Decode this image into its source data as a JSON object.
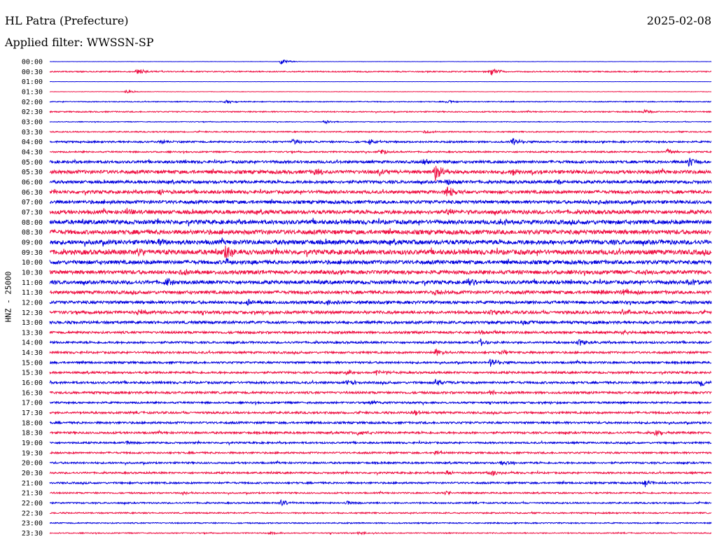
{
  "header": {
    "station": "HL Patra (Prefecture)",
    "date": "2025-02-08",
    "filter_prefix": "Applied filter:",
    "filter_name": "WWSSN-SP",
    "channel": "HNZ - 25000"
  },
  "colors": {
    "trace_even": "#0000dd",
    "trace_odd": "#ee1144",
    "text": "#000000",
    "background": "#ffffff"
  },
  "chart_data": {
    "type": "line",
    "ylabel": "HNZ - 25000",
    "row_labels": [
      "00:00",
      "00:30",
      "01:00",
      "01:30",
      "02:00",
      "02:30",
      "03:00",
      "03:30",
      "04:00",
      "04:30",
      "05:00",
      "05:30",
      "06:00",
      "06:30",
      "07:00",
      "07:30",
      "08:00",
      "08:30",
      "09:00",
      "09:30",
      "10:00",
      "10:30",
      "11:00",
      "11:30",
      "12:00",
      "12:30",
      "13:00",
      "13:30",
      "14:00",
      "14:30",
      "15:00",
      "15:30",
      "16:00",
      "16:30",
      "17:00",
      "17:30",
      "18:00",
      "18:30",
      "19:00",
      "19:30",
      "20:00",
      "20:30",
      "21:00",
      "21:30",
      "22:00",
      "22:30",
      "23:00",
      "23:30"
    ],
    "x_range_minutes": [
      0,
      30
    ],
    "noise_level": [
      0.2,
      0.8,
      0.15,
      0.3,
      0.6,
      0.8,
      0.5,
      0.8,
      1.2,
      1.0,
      1.8,
      2.4,
      2.0,
      2.2,
      2.2,
      2.6,
      2.8,
      3.0,
      3.0,
      3.2,
      2.6,
      2.6,
      2.4,
      2.2,
      2.0,
      2.0,
      1.8,
      1.6,
      1.4,
      1.4,
      1.4,
      1.4,
      1.5,
      1.5,
      1.3,
      1.4,
      1.4,
      1.4,
      1.2,
      1.2,
      1.2,
      1.2,
      1.2,
      1.0,
      1.0,
      0.9,
      0.8,
      0.7
    ],
    "events": [
      {
        "row": 0,
        "t": 10.5,
        "amp": 4
      },
      {
        "row": 1,
        "t": 4.0,
        "amp": 5
      },
      {
        "row": 1,
        "t": 20.0,
        "amp": 6
      },
      {
        "row": 3,
        "t": 3.5,
        "amp": 3
      },
      {
        "row": 4,
        "t": 8.0,
        "amp": 3
      },
      {
        "row": 4,
        "t": 18.0,
        "amp": 3
      },
      {
        "row": 5,
        "t": 27.0,
        "amp": 3
      },
      {
        "row": 6,
        "t": 12.5,
        "amp": 2.5
      },
      {
        "row": 7,
        "t": 17.0,
        "amp": 3
      },
      {
        "row": 8,
        "t": 5.0,
        "amp": 3
      },
      {
        "row": 8,
        "t": 11.0,
        "amp": 4
      },
      {
        "row": 8,
        "t": 14.5,
        "amp": 5
      },
      {
        "row": 8,
        "t": 21.0,
        "amp": 6
      },
      {
        "row": 9,
        "t": 15.0,
        "amp": 4
      },
      {
        "row": 9,
        "t": 28.0,
        "amp": 4
      },
      {
        "row": 10,
        "t": 17.0,
        "amp": 5
      },
      {
        "row": 10,
        "t": 29.0,
        "amp": 7
      },
      {
        "row": 11,
        "t": 17.5,
        "amp": 12
      },
      {
        "row": 11,
        "t": 15.0,
        "amp": 6
      },
      {
        "row": 11,
        "t": 12.0,
        "amp": 5
      },
      {
        "row": 11,
        "t": 21.0,
        "amp": 5
      },
      {
        "row": 12,
        "t": 18.0,
        "amp": 4
      },
      {
        "row": 12,
        "t": 23.0,
        "amp": 4
      },
      {
        "row": 13,
        "t": 5.0,
        "amp": 5
      },
      {
        "row": 13,
        "t": 18.0,
        "amp": 8
      },
      {
        "row": 14,
        "t": 24.5,
        "amp": 5
      },
      {
        "row": 15,
        "t": 3.5,
        "amp": 4
      },
      {
        "row": 15,
        "t": 18.0,
        "amp": 4
      },
      {
        "row": 16,
        "t": 20.5,
        "amp": 4
      },
      {
        "row": 18,
        "t": 5.0,
        "amp": 4
      },
      {
        "row": 19,
        "t": 8.0,
        "amp": 13
      },
      {
        "row": 19,
        "t": 4.0,
        "amp": 5
      },
      {
        "row": 20,
        "t": 8.0,
        "amp": 5
      },
      {
        "row": 21,
        "t": 6.0,
        "amp": 4
      },
      {
        "row": 21,
        "t": 27.0,
        "amp": 4
      },
      {
        "row": 22,
        "t": 5.3,
        "amp": 6
      },
      {
        "row": 22,
        "t": 19.0,
        "amp": 5
      },
      {
        "row": 22,
        "t": 29.0,
        "amp": 5
      },
      {
        "row": 23,
        "t": 17.5,
        "amp": 5
      },
      {
        "row": 23,
        "t": 25.0,
        "amp": 5
      },
      {
        "row": 23,
        "t": 26.0,
        "amp": 6
      },
      {
        "row": 24,
        "t": 9.0,
        "amp": 4
      },
      {
        "row": 24,
        "t": 12.5,
        "amp": 4
      },
      {
        "row": 25,
        "t": 4.0,
        "amp": 5
      },
      {
        "row": 25,
        "t": 20.0,
        "amp": 4
      },
      {
        "row": 25,
        "t": 26.0,
        "amp": 5
      },
      {
        "row": 26,
        "t": 21.5,
        "amp": 4
      },
      {
        "row": 27,
        "t": 19.5,
        "amp": 4
      },
      {
        "row": 27,
        "t": 26.0,
        "amp": 3
      },
      {
        "row": 28,
        "t": 19.5,
        "amp": 6
      },
      {
        "row": 28,
        "t": 24.0,
        "amp": 5
      },
      {
        "row": 29,
        "t": 17.5,
        "amp": 5
      },
      {
        "row": 29,
        "t": 20.5,
        "amp": 4
      },
      {
        "row": 30,
        "t": 20.0,
        "amp": 7
      },
      {
        "row": 31,
        "t": 13.5,
        "amp": 4
      },
      {
        "row": 31,
        "t": 14.8,
        "amp": 4
      },
      {
        "row": 32,
        "t": 13.5,
        "amp": 5
      },
      {
        "row": 32,
        "t": 17.5,
        "amp": 5
      },
      {
        "row": 32,
        "t": 29.5,
        "amp": 5
      },
      {
        "row": 33,
        "t": 20.0,
        "amp": 4
      },
      {
        "row": 34,
        "t": 14.5,
        "amp": 4
      },
      {
        "row": 35,
        "t": 16.5,
        "amp": 4
      },
      {
        "row": 37,
        "t": 14.0,
        "amp": 4
      },
      {
        "row": 37,
        "t": 27.5,
        "amp": 4
      },
      {
        "row": 38,
        "t": 3.5,
        "amp": 4
      },
      {
        "row": 39,
        "t": 17.5,
        "amp": 3
      },
      {
        "row": 40,
        "t": 20.5,
        "amp": 4
      },
      {
        "row": 41,
        "t": 18.0,
        "amp": 4
      },
      {
        "row": 41,
        "t": 20.0,
        "amp": 5
      },
      {
        "row": 42,
        "t": 27.0,
        "amp": 5
      },
      {
        "row": 43,
        "t": 6.0,
        "amp": 3
      },
      {
        "row": 43,
        "t": 18.0,
        "amp": 3
      },
      {
        "row": 44,
        "t": 10.5,
        "amp": 5
      },
      {
        "row": 44,
        "t": 13.5,
        "amp": 4
      },
      {
        "row": 47,
        "t": 10.0,
        "amp": 2
      },
      {
        "row": 47,
        "t": 14.0,
        "amp": 2
      }
    ]
  }
}
